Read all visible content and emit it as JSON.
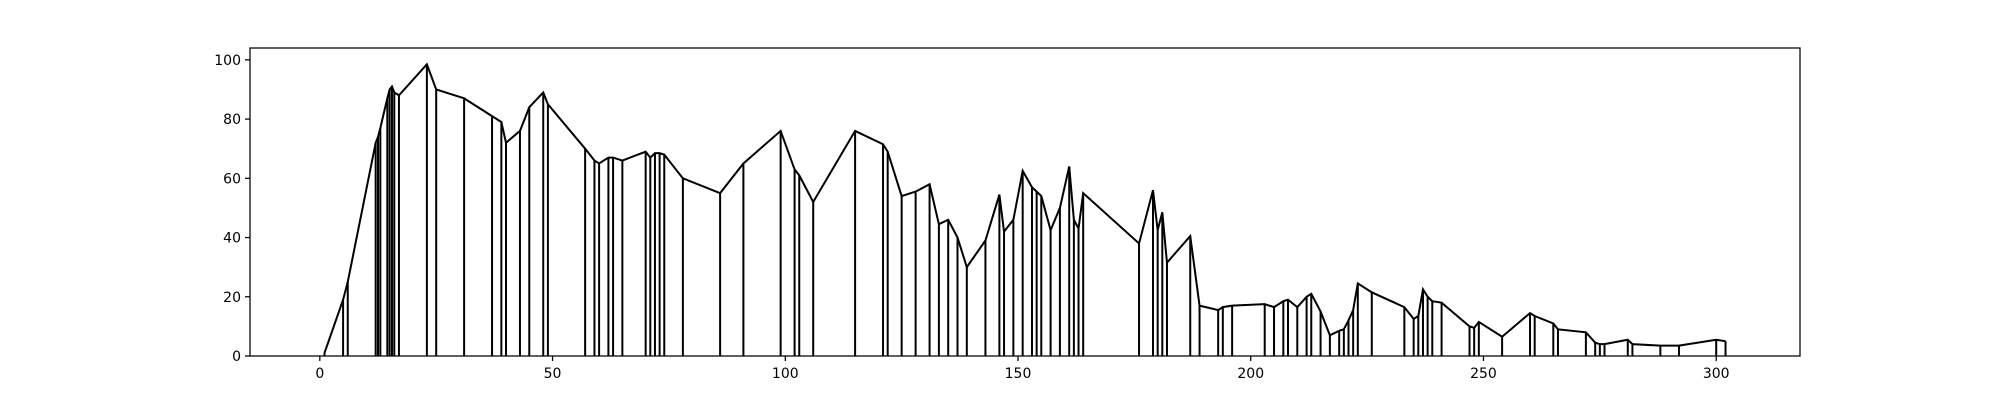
{
  "chart_data": {
    "type": "line",
    "title": "",
    "xlabel": "",
    "ylabel": "",
    "xlim": [
      -15,
      318
    ],
    "ylim": [
      0,
      104
    ],
    "x_ticks": [
      0,
      50,
      100,
      150,
      200,
      250,
      300
    ],
    "y_ticks": [
      0,
      20,
      40,
      60,
      80,
      100
    ],
    "grid": false,
    "line_color": "#000000",
    "drop_lines_to_baseline": true,
    "x": [
      1,
      5,
      6,
      12,
      12.5,
      13,
      14.5,
      15,
      15.5,
      16,
      17,
      23,
      25,
      31,
      37,
      39,
      40,
      43,
      45,
      48,
      49,
      57,
      59,
      60,
      62,
      63,
      65,
      70,
      71,
      72,
      73,
      74,
      78,
      86,
      91,
      99,
      102,
      103,
      106,
      115,
      121,
      122,
      125,
      128,
      131,
      133,
      135,
      137,
      139,
      143,
      146,
      147,
      149,
      151,
      153,
      154,
      155,
      157,
      159,
      161,
      162,
      163,
      164,
      176,
      179,
      180,
      181,
      182,
      187,
      189,
      193,
      194,
      196,
      203,
      205,
      207,
      208,
      210,
      212,
      213,
      215,
      217,
      219,
      220,
      221,
      222,
      223,
      226,
      233,
      235,
      236,
      237,
      238,
      239,
      241,
      247,
      248,
      249,
      254,
      260,
      261,
      265,
      266,
      272,
      274,
      275,
      276,
      281,
      282,
      288,
      292,
      300,
      302
    ],
    "y": [
      1,
      19,
      25,
      72,
      74,
      77,
      87,
      90,
      91,
      89,
      88,
      98.5,
      90,
      87,
      81,
      79,
      72,
      76,
      84,
      89,
      85,
      70,
      66,
      65,
      67,
      67,
      66,
      69,
      67,
      68.5,
      68.5,
      68,
      60,
      55,
      65,
      76,
      63,
      61,
      52,
      76,
      71.5,
      69,
      54,
      55.5,
      58,
      44.5,
      46,
      40,
      30,
      39,
      54.5,
      42,
      46,
      62.5,
      57,
      55.5,
      54,
      42.5,
      50,
      64,
      46,
      43,
      55,
      38,
      56,
      42.5,
      48.5,
      31.5,
      40.5,
      17,
      15.5,
      16.5,
      17,
      17.5,
      16.5,
      18.5,
      19,
      16.5,
      20,
      21,
      15,
      7,
      8.5,
      9,
      12,
      15.5,
      24.5,
      21.5,
      16.5,
      12.5,
      13.5,
      22.5,
      20,
      18.5,
      18,
      10,
      9.5,
      11.5,
      6.5,
      14.5,
      13.5,
      11,
      9,
      8,
      4.5,
      4,
      4,
      5.5,
      4,
      3.5,
      3.5,
      5.5,
      5
    ]
  }
}
